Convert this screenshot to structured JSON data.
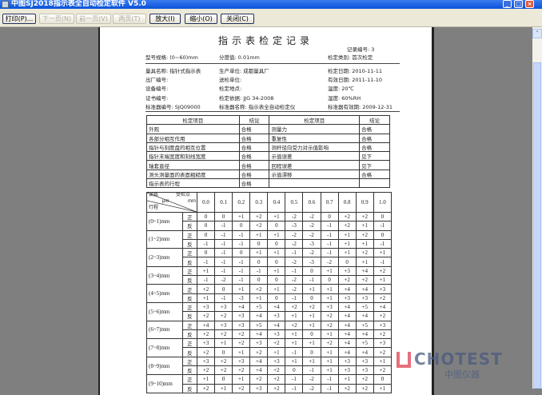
{
  "window": {
    "title": "中图SJ2018指示表全自动检定软件 V5.0",
    "minimize": "_",
    "maximize": "□",
    "close": "×"
  },
  "toolbar": {
    "buttons": [
      {
        "label": "打印(P)...",
        "enabled": true
      },
      {
        "label": "下一页(N)",
        "enabled": false
      },
      {
        "label": "前一页(V)",
        "enabled": false
      },
      {
        "label": "两页(T)",
        "enabled": false
      },
      {
        "label": "放大(I)",
        "enabled": true
      },
      {
        "label": "缩小(O)",
        "enabled": true
      },
      {
        "label": "关闭(C)",
        "enabled": true
      }
    ]
  },
  "doc": {
    "title": "指示表检定记录",
    "record_no": "记录编号: 3",
    "spec": "型号规格: (0~60)mm",
    "division": "分度值:  0.01mm",
    "category": "检定类别: 首次检定",
    "info": [
      [
        "量具名称: 指针式指示表",
        "生产单位: 成都量具厂",
        "检定日期: 2010-11-11"
      ],
      [
        "出厂编号:",
        "送检单位:",
        "有效日期: 2011-11-10"
      ],
      [
        "设备编号:",
        "检定地点:",
        "温度:    20℃"
      ],
      [
        "证书编号:",
        "检定依据: JJG 34-2008",
        "湿度:    60%RH"
      ],
      [
        "标准器编号: SJQ09000",
        "标准器名称: 指示表全自动检定仪",
        "标准器有效期: 2009-12-31"
      ]
    ],
    "items_header": [
      "检定项目",
      "结论",
      "检定项目",
      "结论"
    ],
    "items": [
      [
        "外观",
        "合格",
        "测量力",
        "合格"
      ],
      [
        "各部分相互作用",
        "合格",
        "重复性",
        "合格"
      ],
      [
        "指针与刻度盘的相互位置",
        "合格",
        "测杆径向受力对示值影响",
        "合格"
      ],
      [
        "指针末端宽度和刻线宽度",
        "合格",
        "示值误差",
        "见下"
      ],
      [
        "轴套直径",
        "合格",
        "回程误差",
        "见下"
      ],
      [
        "测头测量面的表面粗糙度",
        "合格",
        "示值漂移",
        "合格"
      ],
      [
        "指示表的行程",
        "合格",
        "",
        ""
      ]
    ],
    "data_header": {
      "reading": "读数",
      "reading_unit": "μm",
      "point": "受检点",
      "point_unit": "mm",
      "stroke": "行程"
    },
    "points": [
      "0.0",
      "0.1",
      "0.2",
      "0.3",
      "0.4",
      "0.5",
      "0.6",
      "0.7",
      "0.8",
      "0.9",
      "1.0"
    ],
    "rows": [
      {
        "range": "(0~1)mm",
        "fwd": [
          "0",
          "0",
          "+1",
          "+2",
          "+1",
          "-2",
          "-2",
          "0",
          "+2",
          "+2",
          "0"
        ],
        "rev": [
          "0",
          "-1",
          "0",
          "+2",
          "0",
          "-3",
          "-2",
          "-1",
          "+2",
          "+1",
          "-1"
        ]
      },
      {
        "range": "(1~2)mm",
        "fwd": [
          "0",
          "-1",
          "-1",
          "+1",
          "+1",
          "-2",
          "-2",
          "-1",
          "+1",
          "+2",
          "0"
        ],
        "rev": [
          "-1",
          "-1",
          "-1",
          "0",
          "0",
          "-2",
          "-3",
          "-1",
          "+1",
          "+1",
          "-1"
        ]
      },
      {
        "range": "(2~3)mm",
        "fwd": [
          "0",
          "-1",
          "0",
          "+1",
          "+1",
          "-1",
          "-2",
          "-1",
          "+1",
          "+2",
          "+1"
        ],
        "rev": [
          "-1",
          "-1",
          "-1",
          "0",
          "0",
          "-2",
          "-3",
          "-2",
          "0",
          "+1",
          "-1"
        ]
      },
      {
        "range": "(3~4)mm",
        "fwd": [
          "+1",
          "-1",
          "-1",
          "-1",
          "+1",
          "-1",
          "0",
          "+1",
          "+3",
          "+4",
          "+2"
        ],
        "rev": [
          "-1",
          "-2",
          "-1",
          "0",
          "0",
          "-2",
          "-1",
          "0",
          "+2",
          "+2",
          "+1"
        ]
      },
      {
        "range": "(4~5)mm",
        "fwd": [
          "+2",
          "0",
          "+1",
          "+2",
          "+1",
          "-2",
          "+1",
          "+1",
          "+4",
          "+4",
          "+3"
        ],
        "rev": [
          "+1",
          "-1",
          "-3",
          "+1",
          "0",
          "-1",
          "0",
          "+1",
          "+3",
          "+3",
          "+2"
        ]
      },
      {
        "range": "(5~6)mm",
        "fwd": [
          "+3",
          "+3",
          "+4",
          "+5",
          "+4",
          "+2",
          "+2",
          "+3",
          "+4",
          "+5",
          "+4"
        ],
        "rev": [
          "+2",
          "+2",
          "+3",
          "+4",
          "+3",
          "+1",
          "+1",
          "+2",
          "+4",
          "+4",
          "+2"
        ]
      },
      {
        "range": "(6~7)mm",
        "fwd": [
          "+4",
          "+3",
          "+3",
          "+5",
          "+4",
          "+2",
          "+1",
          "+2",
          "+4",
          "+5",
          "+3"
        ],
        "rev": [
          "+2",
          "+2",
          "+2",
          "+4",
          "+3",
          "+1",
          "0",
          "+1",
          "+4",
          "+4",
          "+2"
        ]
      },
      {
        "range": "(7~8)mm",
        "fwd": [
          "+3",
          "+1",
          "+2",
          "+3",
          "+2",
          "+1",
          "+1",
          "+2",
          "+4",
          "+5",
          "+3"
        ],
        "rev": [
          "+2",
          "0",
          "+1",
          "+2",
          "+1",
          "-1",
          "0",
          "+1",
          "+4",
          "+4",
          "+2"
        ]
      },
      {
        "range": "(8~9)mm",
        "fwd": [
          "+3",
          "+2",
          "+3",
          "+4",
          "+3",
          "+1",
          "+1",
          "+1",
          "+3",
          "+3",
          "+1"
        ],
        "rev": [
          "+2",
          "+2",
          "+2",
          "+4",
          "+2",
          "0",
          "-1",
          "+1",
          "+3",
          "+3",
          "+2"
        ]
      },
      {
        "range": "(9~10)mm",
        "fwd": [
          "+1",
          "0",
          "+1",
          "+2",
          "+2",
          "-1",
          "-2",
          "-1",
          "+1",
          "+2",
          "0"
        ],
        "rev": [
          "+2",
          "+1",
          "+2",
          "+3",
          "+2",
          "-1",
          "-2",
          "-1",
          "+2",
          "+2",
          "+1"
        ]
      }
    ],
    "fwd_label": "正",
    "rev_label": "反"
  },
  "watermark": {
    "text": "CHOTEST",
    "sub": "中图仪器"
  },
  "scrollbar": {
    "up": "˄"
  }
}
